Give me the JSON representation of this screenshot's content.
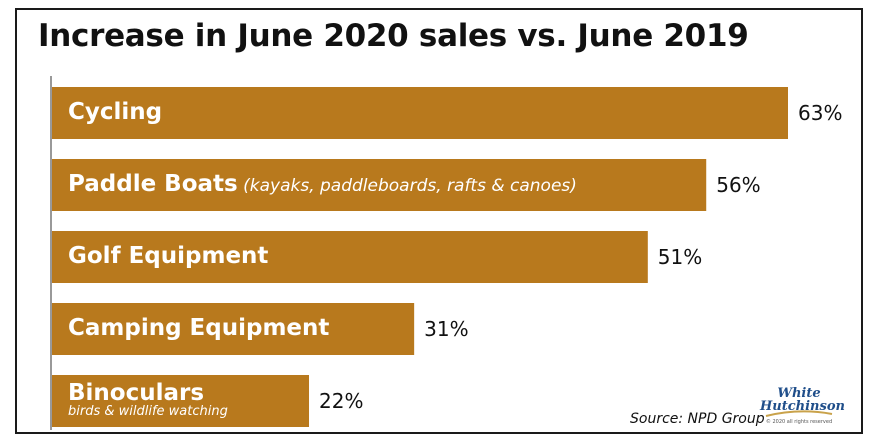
{
  "title": "Increase in June 2020 sales vs. June 2019",
  "source": "Source: NPD Group",
  "logo": {
    "line1": "White",
    "line2": "Hutchinson",
    "fine": "© 2020 all rights reserved"
  },
  "colors": {
    "bar": "#B8791D",
    "text": "#111111",
    "frame": "#1a1a1a"
  },
  "chart_data": {
    "type": "bar",
    "orientation": "horizontal",
    "categories": [
      "Cycling",
      "Paddle Boats",
      "Golf Equipment",
      "Camping Equipment",
      "Binoculars"
    ],
    "notes": [
      "",
      "(kayaks, paddleboards, rafts & canoes)",
      "",
      "",
      ""
    ],
    "sublabels": [
      "",
      "",
      "",
      "",
      "birds & wildlife watching"
    ],
    "values": [
      63,
      56,
      51,
      31,
      22
    ],
    "value_labels": [
      "63%",
      "56%",
      "51%",
      "31%",
      "22%"
    ],
    "title": "Increase in June 2020 sales vs. June 2019",
    "xlim": [
      0,
      63
    ],
    "grid": false,
    "legend": "none"
  }
}
